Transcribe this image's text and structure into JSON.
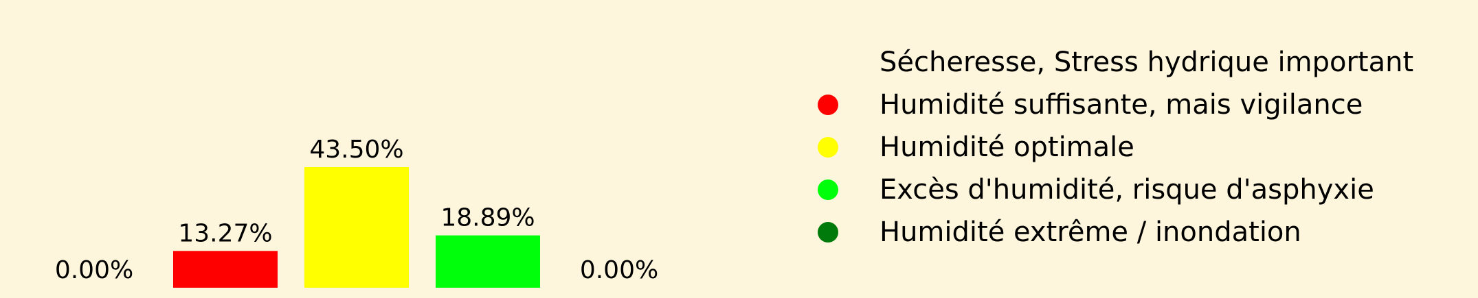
{
  "chart_data": {
    "type": "bar",
    "categories": [
      "Sécheresse, Stress hydrique important",
      "Humidité suffisante, mais vigilance",
      "Humidité optimale",
      "Excès d'humidité, risque d'asphyxie",
      "Humidité extrême / inondation"
    ],
    "values": [
      0.0,
      13.27,
      43.5,
      18.89,
      0.0
    ],
    "value_labels": [
      "0.00%",
      "13.27%",
      "43.50%",
      "18.89%",
      "0.00%"
    ],
    "colors": [
      "#fdf6dc",
      "#ff0000",
      "#ffff00",
      "#00ff0a",
      "#007a0a"
    ],
    "title": "",
    "xlabel": "",
    "ylabel": "",
    "legend": {
      "placement": "right",
      "entries": [
        {
          "label": "Sécheresse, Stress hydrique important",
          "color": "#fdf6dc"
        },
        {
          "label": "Humidité suffisante, mais vigilance",
          "color": "#ff0000"
        },
        {
          "label": "Humidité optimale",
          "color": "#ffff00"
        },
        {
          "label": "Excès d'humidité, risque d'asphyxie",
          "color": "#00ff0a"
        },
        {
          "label": "Humidité extrême / inondation",
          "color": "#007a0a"
        }
      ]
    },
    "grid": false,
    "axes_visible": false
  }
}
